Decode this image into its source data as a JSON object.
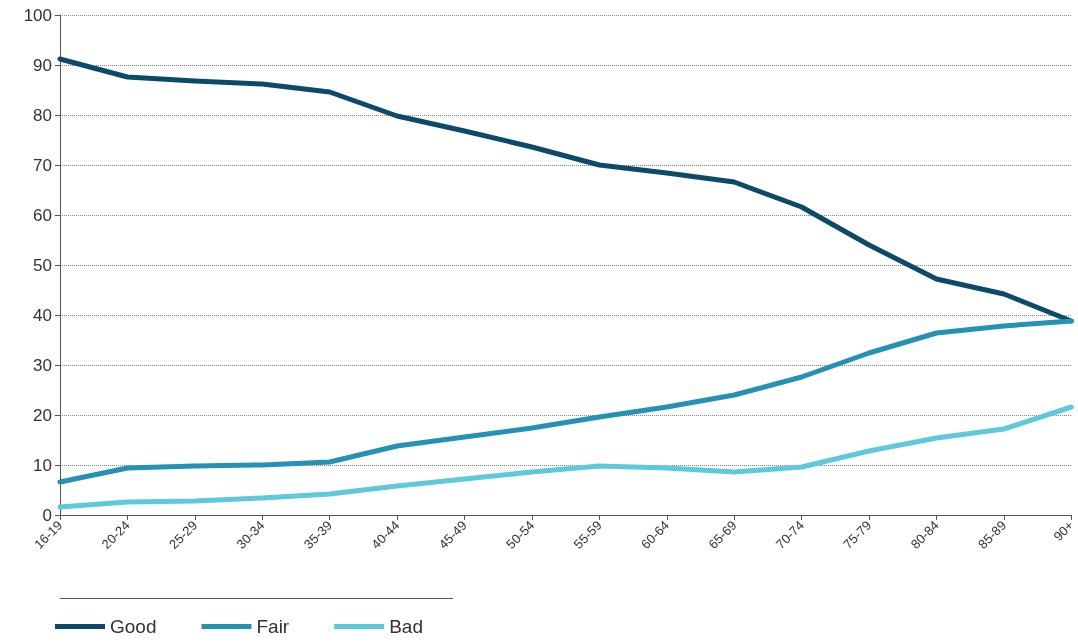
{
  "chart_data": {
    "type": "line",
    "categories": [
      "16-19",
      "20-24",
      "25-29",
      "30-34",
      "35-39",
      "40-44",
      "45-49",
      "50-54",
      "55-59",
      "60-64",
      "65-69",
      "70-74",
      "75-79",
      "80-84",
      "85-89",
      "90+"
    ],
    "series": [
      {
        "name": "Good",
        "color": "#0b4a68",
        "values": [
          91.2,
          87.6,
          86.8,
          86.2,
          84.6,
          79.8,
          76.8,
          73.6,
          70,
          68.4,
          66.6,
          61.6,
          54,
          47.2,
          44.2,
          38.8
        ]
      },
      {
        "name": "Fair",
        "color": "#2591b5",
        "values": [
          6.6,
          9.4,
          9.8,
          10,
          10.6,
          13.8,
          15.6,
          17.4,
          19.6,
          21.6,
          24,
          27.6,
          32.4,
          36.4,
          37.8,
          38.8
        ]
      },
      {
        "name": "Bad",
        "color": "#5ec9dc",
        "values": [
          1.6,
          2.6,
          2.8,
          3.4,
          4.2,
          5.8,
          7.2,
          8.6,
          9.8,
          9.4,
          8.6,
          9.6,
          12.8,
          15.4,
          17.2,
          21.6
        ]
      }
    ],
    "ylim": [
      0,
      100
    ],
    "yticks": [
      0,
      10,
      20,
      30,
      40,
      50,
      60,
      70,
      80,
      90,
      100
    ],
    "grid": "y",
    "legend": "bottom",
    "marker": "none",
    "line_style": "solid"
  }
}
